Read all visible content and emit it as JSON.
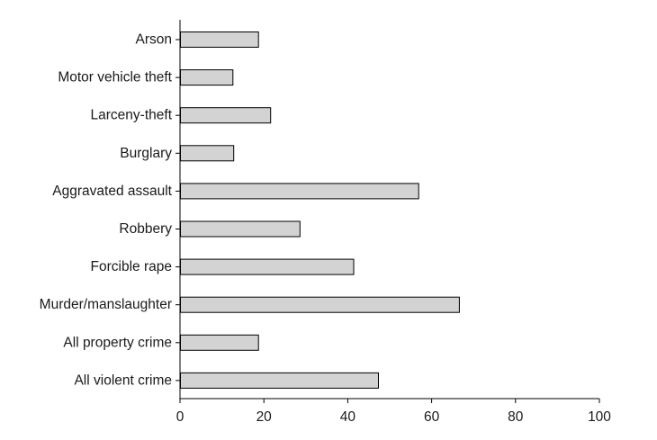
{
  "chart_data": {
    "type": "bar",
    "orientation": "horizontal",
    "title": "",
    "xlabel": "",
    "ylabel": "",
    "categories": [
      "Arson",
      "Motor vehicle theft",
      "Larceny-theft",
      "Burglary",
      "Aggravated assault",
      "Robbery",
      "Forcible rape",
      "Murder/manslaughter",
      "All property crime",
      "All violent crime"
    ],
    "values": [
      18.6,
      12.5,
      21.5,
      12.7,
      56.8,
      28.5,
      41.3,
      66.5,
      18.6,
      47.2
    ],
    "xlim": [
      0,
      100
    ],
    "xticks": [
      "0",
      "20",
      "40",
      "60",
      "80",
      "100"
    ],
    "grid": false,
    "legend": "none",
    "colors": {
      "bar_fill": "#d3d3d3",
      "bar_stroke": "#000000",
      "axis": "#000000"
    }
  }
}
